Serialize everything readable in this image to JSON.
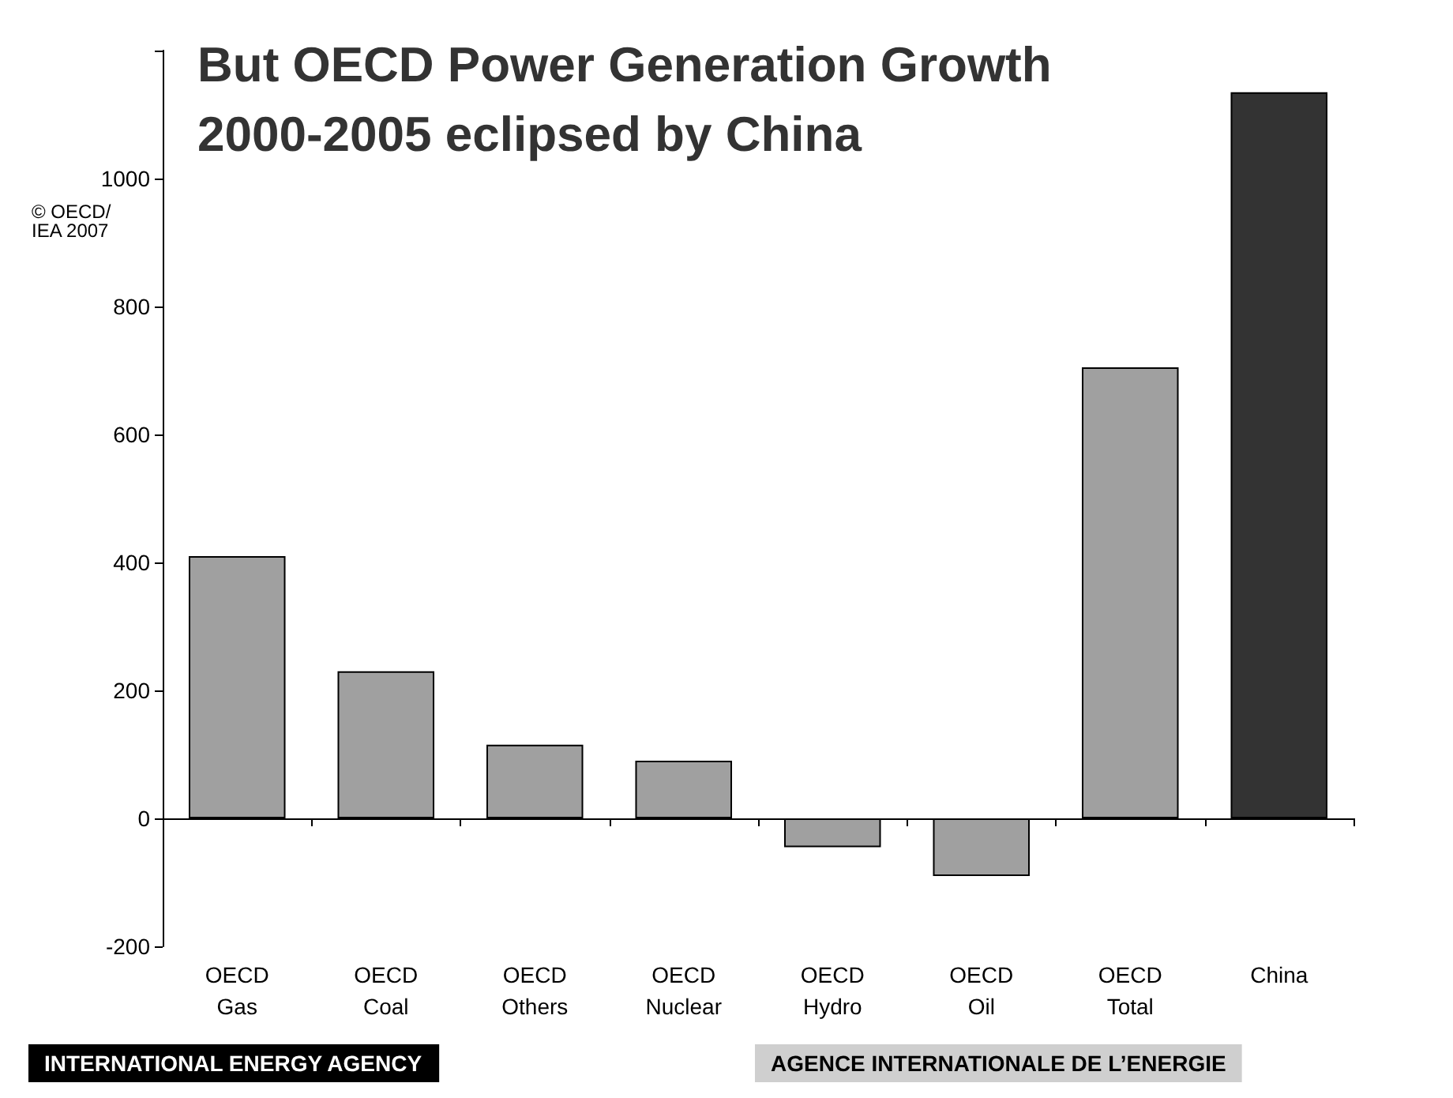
{
  "chart_data": {
    "type": "bar",
    "title": "But OECD Power Generation Growth\n2000-2005 eclipsed by China",
    "categories": [
      "OECD Gas",
      "OECD Coal",
      "OECD Others",
      "OECD Nuclear",
      "OECD Hydro",
      "OECD Oil",
      "OECD Total",
      "China"
    ],
    "values": [
      410,
      230,
      115,
      90,
      -45,
      -90,
      705,
      1135
    ],
    "colors": [
      "#a0a0a0",
      "#a0a0a0",
      "#a0a0a0",
      "#a0a0a0",
      "#a0a0a0",
      "#a0a0a0",
      "#a0a0a0",
      "#333333"
    ],
    "ylim": [
      -200,
      1200
    ],
    "yticks": [
      -200,
      0,
      200,
      400,
      600,
      800,
      1000,
      {
        "value": 1200,
        "label": null
      }
    ],
    "annotations": [
      "© OECD/IEA 2007",
      "INTERNATIONAL ENERGY AGENCY",
      "AGENCE INTERNATIONALE DE L’ENERGIE"
    ]
  }
}
